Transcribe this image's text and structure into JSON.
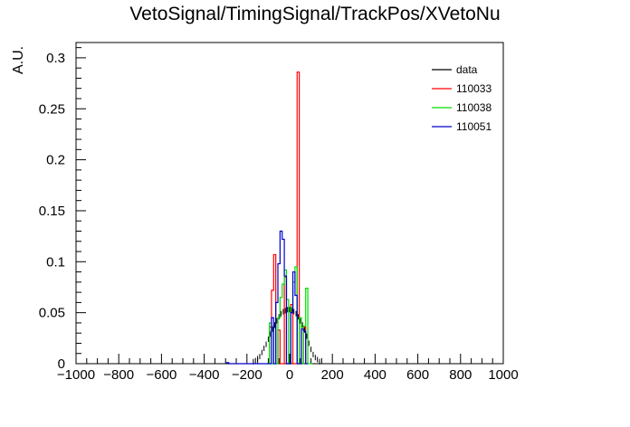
{
  "chart_data": {
    "type": "histogram",
    "title": "VetoSignal/TimingSignal/TrackPos/XVetoNu",
    "xlabel": "",
    "ylabel": "A.U.",
    "xlim": [
      -1000,
      1000
    ],
    "ylim": [
      0,
      0.315
    ],
    "x_ticks": [
      -1000,
      -800,
      -600,
      -400,
      -200,
      0,
      200,
      400,
      600,
      800,
      1000
    ],
    "x_tick_labels": [
      "−1000",
      "−800",
      "−600",
      "−400",
      "−200",
      "0",
      "200",
      "400",
      "600",
      "800",
      "1000"
    ],
    "y_ticks": [
      0,
      0.05,
      0.1,
      0.15,
      0.2,
      0.25,
      0.3
    ],
    "y_tick_labels": [
      "0",
      "0.05",
      "0.1",
      "0.15",
      "0.2",
      "0.25",
      "0.3"
    ],
    "grid": false,
    "legend_position": "top-right",
    "series": [
      {
        "name": "data",
        "color": "#000000",
        "style": "points",
        "x": [
          -170,
          -160,
          -150,
          -140,
          -130,
          -120,
          -110,
          -100,
          -90,
          -80,
          -70,
          -60,
          -50,
          -40,
          -30,
          -20,
          -10,
          0,
          10,
          20,
          30,
          40,
          50,
          60,
          70,
          80,
          90,
          100,
          110,
          120,
          130,
          140
        ],
        "values": [
          0.002,
          0.003,
          0.005,
          0.007,
          0.011,
          0.015,
          0.019,
          0.024,
          0.029,
          0.034,
          0.038,
          0.042,
          0.046,
          0.049,
          0.051,
          0.052,
          0.053,
          0.053,
          0.052,
          0.051,
          0.049,
          0.046,
          0.042,
          0.038,
          0.033,
          0.027,
          0.02,
          0.014,
          0.009,
          0.006,
          0.004,
          0.002
        ]
      },
      {
        "name": "110033",
        "color": "#ff0000",
        "style": "step",
        "bin_edges": [
          -95,
          -85,
          -75,
          -65,
          -55,
          -45,
          -35,
          -25,
          -15,
          -5,
          5,
          15,
          25,
          35,
          45,
          55,
          65,
          75
        ],
        "values": [
          0.036,
          0.072,
          0.107,
          0.0,
          0.033,
          0.0,
          0.0,
          0.085,
          0.0,
          0.0,
          0.058,
          0.0,
          0.0,
          0.286,
          0.0,
          0.0,
          0.036
        ]
      },
      {
        "name": "110038",
        "color": "#00dd00",
        "style": "step",
        "bin_edges": [
          -105,
          -95,
          -85,
          -75,
          -65,
          -55,
          -45,
          -35,
          -25,
          -15,
          -5,
          5,
          15,
          25,
          35,
          45,
          55,
          65,
          75,
          85,
          95,
          105
        ],
        "values": [
          0.0,
          0.04,
          0.0,
          0.035,
          0.0,
          0.045,
          0.065,
          0.078,
          0.092,
          0.063,
          0.0,
          0.055,
          0.08,
          0.095,
          0.0,
          0.045,
          0.0,
          0.037,
          0.074,
          0.0,
          0.0
        ]
      },
      {
        "name": "110051",
        "color": "#0000cc",
        "style": "step",
        "bin_edges": [
          -295,
          -285,
          -95,
          -85,
          -75,
          -65,
          -55,
          -45,
          -35,
          -25,
          -15,
          -5,
          5,
          15,
          25,
          35,
          45,
          55,
          65,
          75,
          85
        ],
        "values": [
          0.001,
          0.0,
          0.0,
          0.045,
          0.0,
          0.06,
          0.098,
          0.13,
          0.122,
          0.086,
          0.0,
          0.0,
          0.05,
          0.09,
          0.067,
          0.0,
          0.0,
          0.034,
          0.032,
          0.0
        ]
      }
    ]
  }
}
